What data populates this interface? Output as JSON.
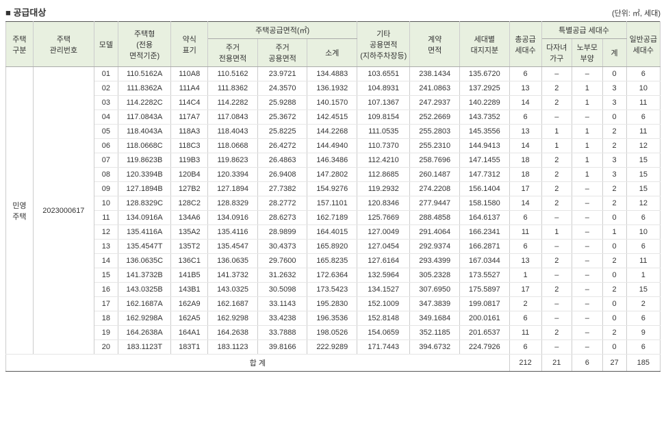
{
  "title": "공급대상",
  "unit_label": "(단위: ㎡, 세대)",
  "headers": {
    "gb": "주택\n구분",
    "mg": "주택\n관리번호",
    "md": "모델",
    "ht": "주택형\n(전용\n면적기준)",
    "ab": "약식\n표기",
    "area_group": "주택공급면적(㎡)",
    "a1": "주거\n전용면적",
    "a2": "주거\n공용면적",
    "a3": "소계",
    "et": "기타\n공용면적\n(지하주차장등)",
    "ct": "계약\n면적",
    "ld": "세대별\n대지지분",
    "ts": "총공급\n세대수",
    "sp_group": "특별공급 세대수",
    "s1": "다자녀\n가구",
    "s2": "노부모\n부양",
    "s3": "계",
    "gs": "일반공급\n세대수"
  },
  "gb_value": "민영\n주택",
  "mg_value": "2023000617",
  "rows": [
    {
      "md": "01",
      "ht": "110.5162A",
      "ab": "110A8",
      "a1": "110.5162",
      "a2": "23.9721",
      "a3": "134.4883",
      "et": "103.6551",
      "ct": "238.1434",
      "ld": "135.6720",
      "ts": "6",
      "s1": "–",
      "s2": "–",
      "s3": "0",
      "gs": "6"
    },
    {
      "md": "02",
      "ht": "111.8362A",
      "ab": "111A4",
      "a1": "111.8362",
      "a2": "24.3570",
      "a3": "136.1932",
      "et": "104.8931",
      "ct": "241.0863",
      "ld": "137.2925",
      "ts": "13",
      "s1": "2",
      "s2": "1",
      "s3": "3",
      "gs": "10"
    },
    {
      "md": "03",
      "ht": "114.2282C",
      "ab": "114C4",
      "a1": "114.2282",
      "a2": "25.9288",
      "a3": "140.1570",
      "et": "107.1367",
      "ct": "247.2937",
      "ld": "140.2289",
      "ts": "14",
      "s1": "2",
      "s2": "1",
      "s3": "3",
      "gs": "11"
    },
    {
      "md": "04",
      "ht": "117.0843A",
      "ab": "117A7",
      "a1": "117.0843",
      "a2": "25.3672",
      "a3": "142.4515",
      "et": "109.8154",
      "ct": "252.2669",
      "ld": "143.7352",
      "ts": "6",
      "s1": "–",
      "s2": "–",
      "s3": "0",
      "gs": "6"
    },
    {
      "md": "05",
      "ht": "118.4043A",
      "ab": "118A3",
      "a1": "118.4043",
      "a2": "25.8225",
      "a3": "144.2268",
      "et": "111.0535",
      "ct": "255.2803",
      "ld": "145.3556",
      "ts": "13",
      "s1": "1",
      "s2": "1",
      "s3": "2",
      "gs": "11"
    },
    {
      "md": "06",
      "ht": "118.0668C",
      "ab": "118C3",
      "a1": "118.0668",
      "a2": "26.4272",
      "a3": "144.4940",
      "et": "110.7370",
      "ct": "255.2310",
      "ld": "144.9413",
      "ts": "14",
      "s1": "1",
      "s2": "1",
      "s3": "2",
      "gs": "12"
    },
    {
      "md": "07",
      "ht": "119.8623B",
      "ab": "119B3",
      "a1": "119.8623",
      "a2": "26.4863",
      "a3": "146.3486",
      "et": "112.4210",
      "ct": "258.7696",
      "ld": "147.1455",
      "ts": "18",
      "s1": "2",
      "s2": "1",
      "s3": "3",
      "gs": "15"
    },
    {
      "md": "08",
      "ht": "120.3394B",
      "ab": "120B4",
      "a1": "120.3394",
      "a2": "26.9408",
      "a3": "147.2802",
      "et": "112.8685",
      "ct": "260.1487",
      "ld": "147.7312",
      "ts": "18",
      "s1": "2",
      "s2": "1",
      "s3": "3",
      "gs": "15"
    },
    {
      "md": "09",
      "ht": "127.1894B",
      "ab": "127B2",
      "a1": "127.1894",
      "a2": "27.7382",
      "a3": "154.9276",
      "et": "119.2932",
      "ct": "274.2208",
      "ld": "156.1404",
      "ts": "17",
      "s1": "2",
      "s2": "–",
      "s3": "2",
      "gs": "15"
    },
    {
      "md": "10",
      "ht": "128.8329C",
      "ab": "128C2",
      "a1": "128.8329",
      "a2": "28.2772",
      "a3": "157.1101",
      "et": "120.8346",
      "ct": "277.9447",
      "ld": "158.1580",
      "ts": "14",
      "s1": "2",
      "s2": "–",
      "s3": "2",
      "gs": "12"
    },
    {
      "md": "11",
      "ht": "134.0916A",
      "ab": "134A6",
      "a1": "134.0916",
      "a2": "28.6273",
      "a3": "162.7189",
      "et": "125.7669",
      "ct": "288.4858",
      "ld": "164.6137",
      "ts": "6",
      "s1": "–",
      "s2": "–",
      "s3": "0",
      "gs": "6"
    },
    {
      "md": "12",
      "ht": "135.4116A",
      "ab": "135A2",
      "a1": "135.4116",
      "a2": "28.9899",
      "a3": "164.4015",
      "et": "127.0049",
      "ct": "291.4064",
      "ld": "166.2341",
      "ts": "11",
      "s1": "1",
      "s2": "–",
      "s3": "1",
      "gs": "10"
    },
    {
      "md": "13",
      "ht": "135.4547T",
      "ab": "135T2",
      "a1": "135.4547",
      "a2": "30.4373",
      "a3": "165.8920",
      "et": "127.0454",
      "ct": "292.9374",
      "ld": "166.2871",
      "ts": "6",
      "s1": "–",
      "s2": "–",
      "s3": "0",
      "gs": "6"
    },
    {
      "md": "14",
      "ht": "136.0635C",
      "ab": "136C1",
      "a1": "136.0635",
      "a2": "29.7600",
      "a3": "165.8235",
      "et": "127.6164",
      "ct": "293.4399",
      "ld": "167.0344",
      "ts": "13",
      "s1": "2",
      "s2": "–",
      "s3": "2",
      "gs": "11"
    },
    {
      "md": "15",
      "ht": "141.3732B",
      "ab": "141B5",
      "a1": "141.3732",
      "a2": "31.2632",
      "a3": "172.6364",
      "et": "132.5964",
      "ct": "305.2328",
      "ld": "173.5527",
      "ts": "1",
      "s1": "–",
      "s2": "–",
      "s3": "0",
      "gs": "1"
    },
    {
      "md": "16",
      "ht": "143.0325B",
      "ab": "143B1",
      "a1": "143.0325",
      "a2": "30.5098",
      "a3": "173.5423",
      "et": "134.1527",
      "ct": "307.6950",
      "ld": "175.5897",
      "ts": "17",
      "s1": "2",
      "s2": "–",
      "s3": "2",
      "gs": "15"
    },
    {
      "md": "17",
      "ht": "162.1687A",
      "ab": "162A9",
      "a1": "162.1687",
      "a2": "33.1143",
      "a3": "195.2830",
      "et": "152.1009",
      "ct": "347.3839",
      "ld": "199.0817",
      "ts": "2",
      "s1": "–",
      "s2": "–",
      "s3": "0",
      "gs": "2"
    },
    {
      "md": "18",
      "ht": "162.9298A",
      "ab": "162A5",
      "a1": "162.9298",
      "a2": "33.4238",
      "a3": "196.3536",
      "et": "152.8148",
      "ct": "349.1684",
      "ld": "200.0161",
      "ts": "6",
      "s1": "–",
      "s2": "–",
      "s3": "0",
      "gs": "6"
    },
    {
      "md": "19",
      "ht": "164.2638A",
      "ab": "164A1",
      "a1": "164.2638",
      "a2": "33.7888",
      "a3": "198.0526",
      "et": "154.0659",
      "ct": "352.1185",
      "ld": "201.6537",
      "ts": "11",
      "s1": "2",
      "s2": "–",
      "s3": "2",
      "gs": "9"
    },
    {
      "md": "20",
      "ht": "183.1123T",
      "ab": "183T1",
      "a1": "183.1123",
      "a2": "39.8166",
      "a3": "222.9289",
      "et": "171.7443",
      "ct": "394.6732",
      "ld": "224.7926",
      "ts": "6",
      "s1": "–",
      "s2": "–",
      "s3": "0",
      "gs": "6"
    }
  ],
  "total": {
    "label": "합 계",
    "ts": "212",
    "s1": "21",
    "s2": "6",
    "s3": "27",
    "gs": "185"
  }
}
